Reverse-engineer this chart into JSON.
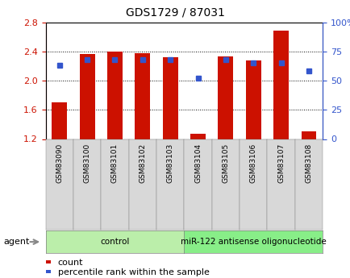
{
  "title": "GDS1729 / 87031",
  "categories": [
    "GSM83090",
    "GSM83100",
    "GSM83101",
    "GSM83102",
    "GSM83103",
    "GSM83104",
    "GSM83105",
    "GSM83106",
    "GSM83107",
    "GSM83108"
  ],
  "bar_values": [
    1.7,
    2.37,
    2.4,
    2.38,
    2.32,
    1.27,
    2.33,
    2.28,
    2.68,
    1.3
  ],
  "scatter_pct": [
    63,
    68,
    68,
    68,
    68,
    52,
    68,
    65,
    65,
    58
  ],
  "ylim_left": [
    1.2,
    2.8
  ],
  "ylim_right": [
    0,
    100
  ],
  "yticks_left": [
    1.2,
    1.6,
    2.0,
    2.4,
    2.8
  ],
  "yticks_right": [
    0,
    25,
    50,
    75,
    100
  ],
  "bar_color": "#cc1100",
  "scatter_color": "#3355cc",
  "bar_bottom": 1.2,
  "groups": [
    {
      "label": "control",
      "start": 0,
      "end": 5,
      "color": "#bbeeaa"
    },
    {
      "label": "miR-122 antisense oligonucleotide",
      "start": 5,
      "end": 10,
      "color": "#88ee88"
    }
  ],
  "agent_label": "agent",
  "legend_count": "count",
  "legend_pct": "percentile rank within the sample",
  "bg_color": "#ffffff",
  "tick_color_left": "#cc1100",
  "tick_color_right": "#3355cc",
  "title_fontsize": 10,
  "legend_fontsize": 8,
  "bar_width": 0.55,
  "grid_dotted_values": [
    1.6,
    2.0,
    2.4
  ],
  "xlabel_gray": "#d8d8d8"
}
